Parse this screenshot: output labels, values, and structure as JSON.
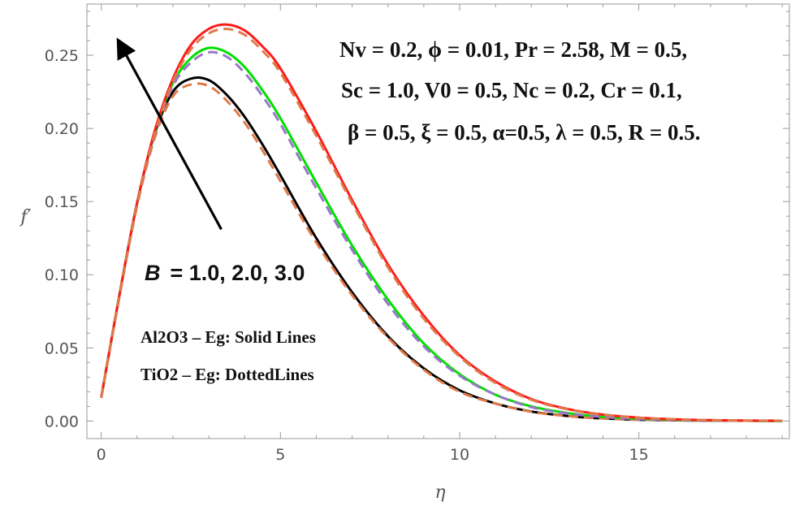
{
  "chart_data": {
    "type": "line",
    "title": "",
    "xlabel": "η",
    "ylabel": "f′",
    "xlim": [
      -0.4,
      19.2
    ],
    "ylim": [
      -0.012,
      0.285
    ],
    "x_ticks": [
      0,
      5,
      10,
      15
    ],
    "y_ticks": [
      0.0,
      0.05,
      0.1,
      0.15,
      0.2,
      0.25
    ],
    "x_tick_labels": [
      "0",
      "5",
      "10",
      "15"
    ],
    "y_tick_labels": [
      "0.00",
      "0.05",
      "0.10",
      "0.15",
      "0.20",
      "0.25"
    ],
    "x": [
      0,
      0.5,
      1,
      1.5,
      2,
      2.5,
      3,
      3.5,
      4,
      4.5,
      5,
      6,
      7,
      8,
      9,
      10,
      11,
      12,
      13,
      14,
      15,
      16,
      17,
      18,
      19
    ],
    "series": [
      {
        "name": "B = 1.0 (Al2O3 – Eg)",
        "style": "solid",
        "color": "#000000",
        "values": [
          0.016,
          0.085,
          0.149,
          0.197,
          0.225,
          0.234,
          0.233,
          0.223,
          0.208,
          0.189,
          0.168,
          0.125,
          0.088,
          0.058,
          0.036,
          0.021,
          0.012,
          0.0065,
          0.0035,
          0.0018,
          0.0009,
          0.0005,
          0.0003,
          0.0002,
          0.0001
        ]
      },
      {
        "name": "B = 1.0 (TiO2 – Eg)",
        "style": "dashed",
        "color": "#e07a4a",
        "values": [
          0.016,
          0.084,
          0.147,
          0.194,
          0.222,
          0.23,
          0.229,
          0.219,
          0.204,
          0.185,
          0.164,
          0.122,
          0.086,
          0.057,
          0.035,
          0.02,
          0.012,
          0.0063,
          0.0034,
          0.0018,
          0.0009,
          0.0005,
          0.0003,
          0.0002,
          0.0001
        ]
      },
      {
        "name": "B = 2.0 (Al2O3 – Eg)",
        "style": "solid",
        "color": "#00e000",
        "values": [
          0.016,
          0.085,
          0.149,
          0.198,
          0.231,
          0.248,
          0.255,
          0.252,
          0.242,
          0.226,
          0.207,
          0.163,
          0.12,
          0.083,
          0.053,
          0.032,
          0.018,
          0.01,
          0.0055,
          0.0029,
          0.0015,
          0.0008,
          0.0004,
          0.0002,
          0.0001
        ]
      },
      {
        "name": "B = 2.0 (TiO2 – Eg)",
        "style": "dashed",
        "color": "#9b77c9",
        "values": [
          0.016,
          0.084,
          0.148,
          0.196,
          0.229,
          0.245,
          0.252,
          0.249,
          0.238,
          0.222,
          0.203,
          0.159,
          0.117,
          0.08,
          0.051,
          0.031,
          0.018,
          0.0095,
          0.0052,
          0.0028,
          0.0014,
          0.0007,
          0.0004,
          0.0002,
          0.0001
        ]
      },
      {
        "name": "B = 3.0 (Al2O3 – Eg)",
        "style": "solid",
        "color": "#ff1a1a",
        "values": [
          0.016,
          0.085,
          0.149,
          0.199,
          0.234,
          0.257,
          0.268,
          0.271,
          0.267,
          0.256,
          0.241,
          0.198,
          0.151,
          0.107,
          0.072,
          0.045,
          0.027,
          0.015,
          0.0083,
          0.0044,
          0.0023,
          0.0012,
          0.0006,
          0.0003,
          0.0002
        ]
      },
      {
        "name": "B = 3.0 (TiO2 – Eg)",
        "style": "dashed",
        "color": "#e07a4a",
        "values": [
          0.016,
          0.084,
          0.148,
          0.197,
          0.232,
          0.254,
          0.265,
          0.268,
          0.264,
          0.253,
          0.238,
          0.195,
          0.149,
          0.105,
          0.07,
          0.044,
          0.026,
          0.0145,
          0.008,
          0.0042,
          0.0022,
          0.0011,
          0.0006,
          0.0003,
          0.0002
        ]
      }
    ],
    "annotations": {
      "params_line1": "Nv = 0.2, ϕ = 0.01, Pr = 2.58, M = 0.5,",
      "params_line2": "Sc = 1.0, V0 = 0.5, Nc = 0.2, Cr = 0.1,",
      "params_line3": "β = 0.5, ξ = 0.5,  α=0.5, λ = 0.5, R = 0.5.",
      "b_symbol": "B",
      "b_values": "= 1.0, 2.0, 3.0",
      "legend_solid": "Al2O3 – Eg: Solid Lines",
      "legend_dotted": "TiO2 – Eg: DottedLines"
    },
    "arrow": {
      "from": {
        "x": 3.35,
        "y": 0.131
      },
      "to": {
        "x": 0.5,
        "y": 0.259
      }
    },
    "colors": {
      "axis": "#9a9a9a",
      "arrow": "#000000"
    }
  }
}
